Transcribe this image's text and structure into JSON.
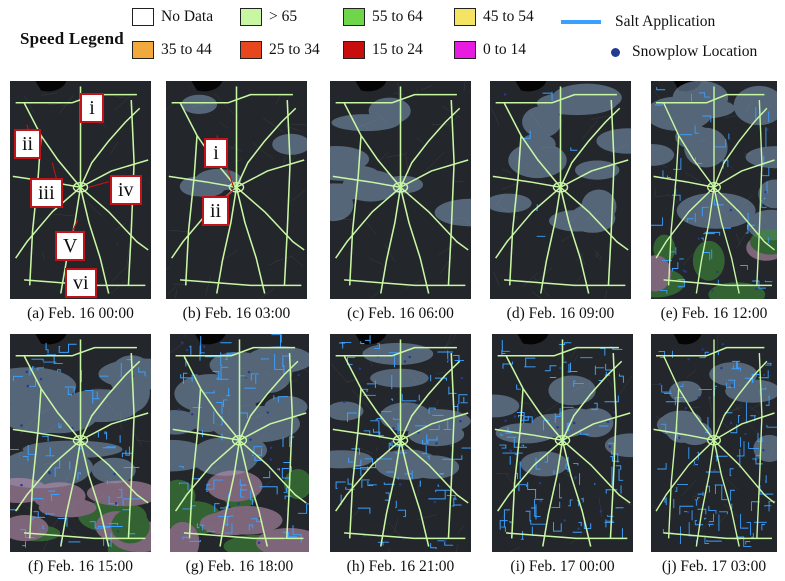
{
  "legend": {
    "title": "Speed Legend",
    "items": [
      {
        "label": "No Data",
        "color": "#ffffff"
      },
      {
        "label": "> 65",
        "color": "#c8f7a4"
      },
      {
        "label": "55 to 64",
        "color": "#6fd64a"
      },
      {
        "label": "45 to 54",
        "color": "#f5e463"
      },
      {
        "label": "35 to 44",
        "color": "#f2a93b"
      },
      {
        "label": "25 to 34",
        "color": "#e8461c"
      },
      {
        "label": "15 to 24",
        "color": "#c90d0d"
      },
      {
        "label": "0 to 14",
        "color": "#e81ce0"
      }
    ],
    "salt_label": "Salt Application",
    "salt_color": "#3aa0ff",
    "snowplow_label": "Snowplow Location",
    "snowplow_color": "#233c91"
  },
  "callouts_a": [
    "i",
    "ii",
    "iii",
    "iv",
    "V",
    "vi"
  ],
  "callouts_b": [
    "i",
    "ii"
  ],
  "panels": [
    {
      "caption": "(a) Feb. 16 00:00",
      "snow": 0.0,
      "salt": 0.0,
      "storm": 0.0
    },
    {
      "caption": "(b) Feb. 16 03:00",
      "snow": 0.15,
      "salt": 0.0,
      "storm": 0.0
    },
    {
      "caption": "(c) Feb. 16 06:00",
      "snow": 0.45,
      "salt": 0.0,
      "storm": 0.0
    },
    {
      "caption": "(d) Feb. 16 09:00",
      "snow": 0.55,
      "salt": 0.05,
      "storm": 0.0
    },
    {
      "caption": "(e) Feb. 16 12:00",
      "snow": 0.7,
      "salt": 0.55,
      "storm": 0.15
    },
    {
      "caption": "(f) Feb. 16 15:00",
      "snow": 0.85,
      "salt": 0.75,
      "storm": 0.55
    },
    {
      "caption": "(g) Feb. 16 18:00",
      "snow": 0.75,
      "salt": 0.9,
      "storm": 0.45
    },
    {
      "caption": "(h) Feb. 16 21:00",
      "snow": 0.45,
      "salt": 0.95,
      "storm": 0.0
    },
    {
      "caption": "(i) Feb. 17 00:00",
      "snow": 0.4,
      "salt": 1.0,
      "storm": 0.0
    },
    {
      "caption": "(j) Feb. 17 03:00",
      "snow": 0.35,
      "salt": 1.0,
      "storm": 0.0
    }
  ]
}
